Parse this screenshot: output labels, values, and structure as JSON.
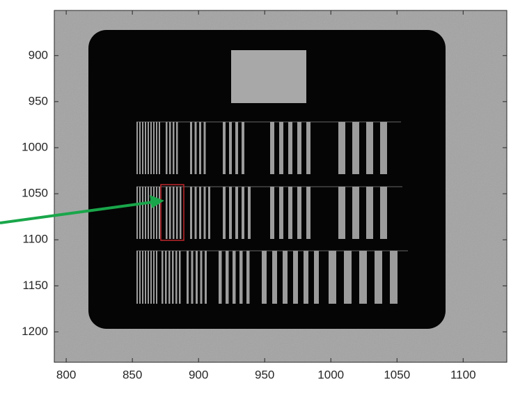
{
  "chart_data": {
    "type": "image",
    "xlim": [
      791,
      1133
    ],
    "xticks": [
      800,
      850,
      900,
      950,
      1000,
      1050,
      1100
    ],
    "ylim": [
      851,
      1233
    ],
    "yticks": [
      900,
      950,
      1000,
      1050,
      1100,
      1150,
      1200
    ],
    "y_reversed": true
  }
}
